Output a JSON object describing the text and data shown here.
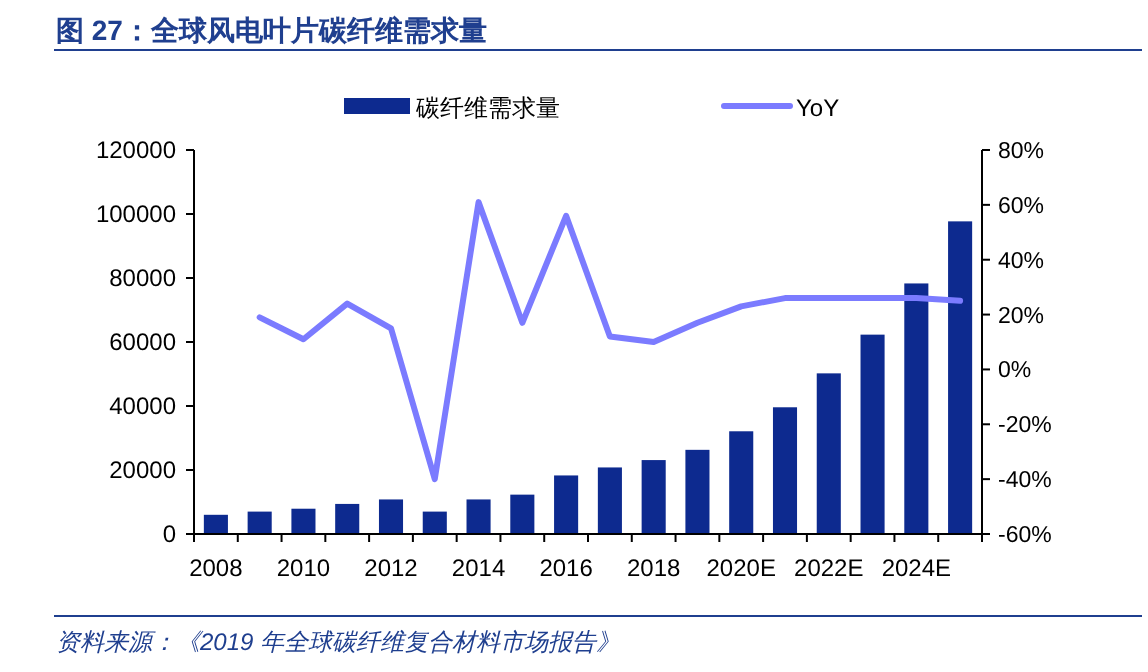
{
  "chart_data": {
    "type": "bar",
    "title": "图 27：全球风电叶片碳纤维需求量",
    "categories": [
      "2008",
      null,
      "2010",
      null,
      "2012",
      null,
      "2014",
      null,
      "2016",
      null,
      "2018",
      null,
      "2020E",
      null,
      "2022E",
      null,
      "2024E",
      null
    ],
    "series": [
      {
        "name": "碳纤维需求量",
        "color": "#0d2a8f",
        "values": [
          6000,
          7000,
          7900,
          9400,
          10800,
          7000,
          10800,
          12300,
          18300,
          20800,
          23100,
          26300,
          32100,
          39600,
          50200,
          62300,
          78300,
          97700
        ]
      },
      {
        "name": "YoY",
        "type": "line",
        "axis": "y2",
        "color": "#7b7bff",
        "values": [
          null,
          19,
          11,
          24,
          15,
          -40,
          61,
          17,
          56,
          12,
          10,
          17,
          23,
          26,
          26,
          26,
          26,
          25
        ]
      }
    ],
    "ylim": [
      0,
      120000
    ],
    "yticks": [
      0,
      20000,
      40000,
      60000,
      80000,
      100000,
      120000
    ],
    "y2lim": [
      -60,
      80
    ],
    "y2ticks": [
      {
        "value": -60,
        "label": "-60%"
      },
      {
        "value": -40,
        "label": "-40%"
      },
      {
        "value": -20,
        "label": "-20%"
      },
      {
        "value": 0,
        "label": "0%"
      },
      {
        "value": 20,
        "label": "20%"
      },
      {
        "value": 40,
        "label": "40%"
      },
      {
        "value": 60,
        "label": "60%"
      },
      {
        "value": 80,
        "label": "80%"
      }
    ],
    "legend": "top",
    "annotations": [
      "资料来源：《2019 年全球碳纤维复合材料市场报告》"
    ]
  }
}
